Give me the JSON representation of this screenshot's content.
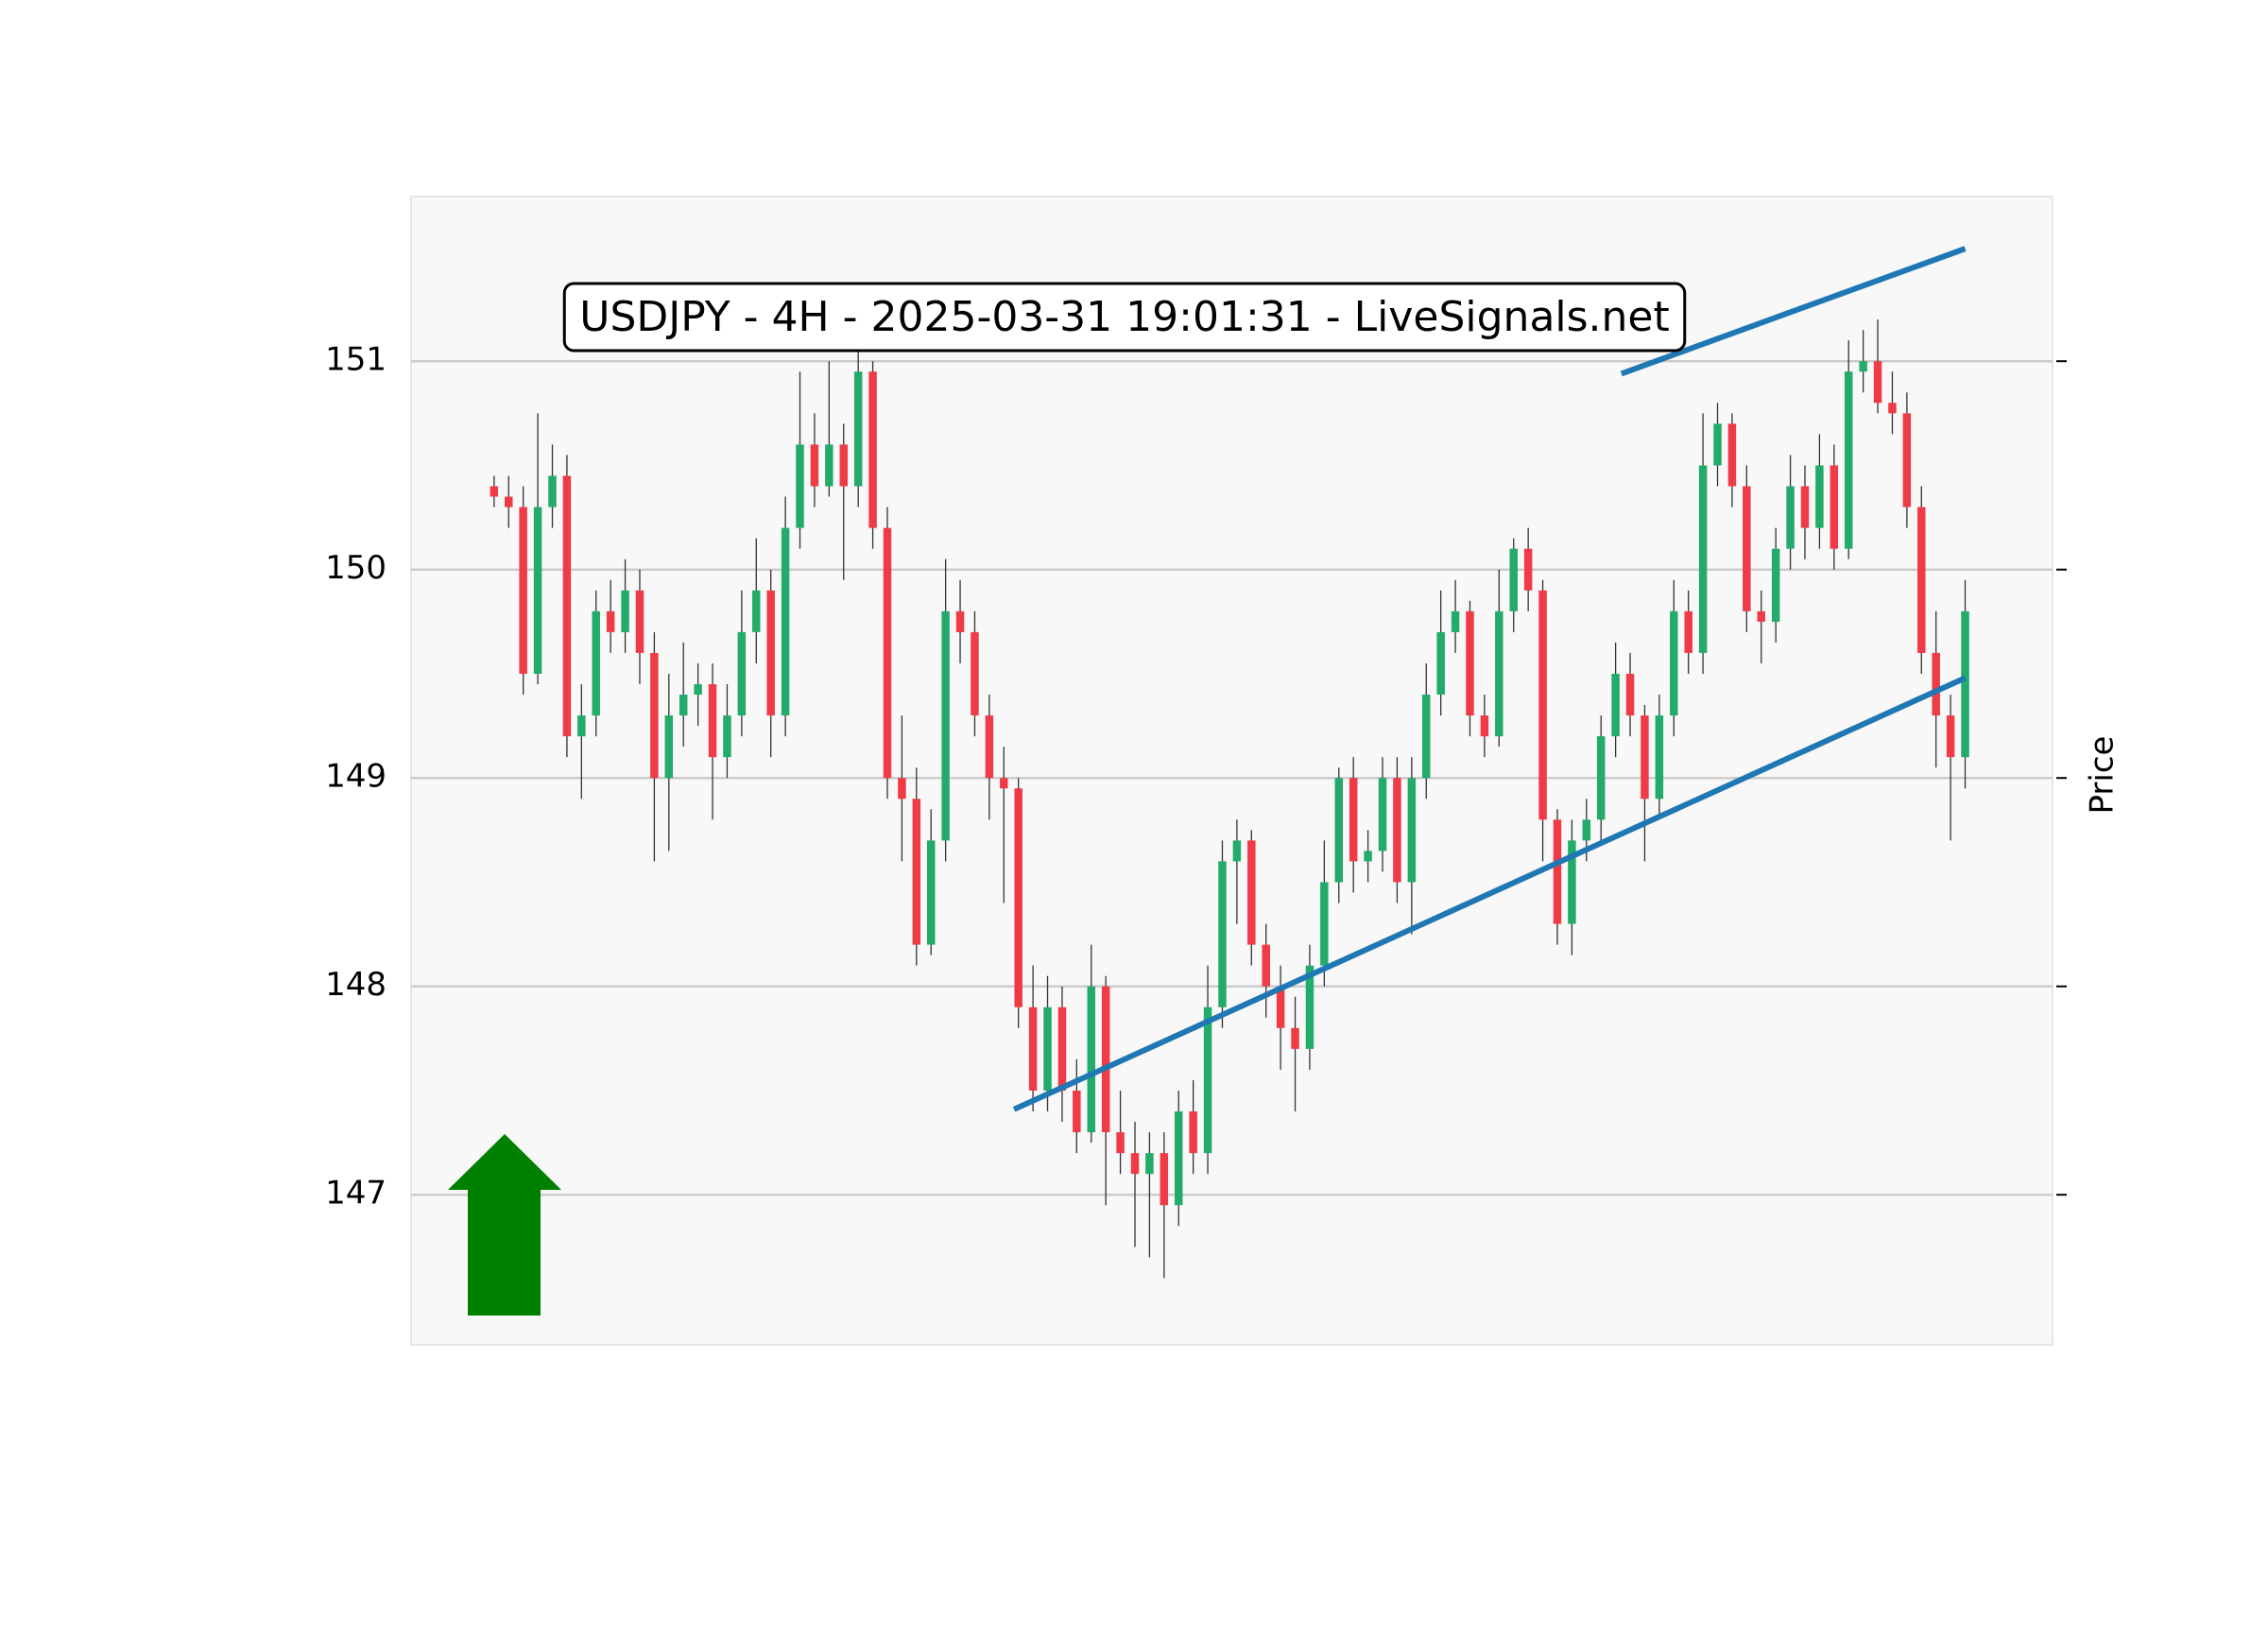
{
  "chart_data": {
    "type": "candlestick",
    "title": "USDJPY - 4H - 2025-03-31 19:01:31 - LiveSignals.net",
    "y_label": "Price",
    "up_color": "#22ab6a",
    "down_color": "#ef3b45",
    "ylim": [
      146.28,
      151.79
    ],
    "yticks": [
      147,
      148,
      149,
      150,
      151
    ],
    "grid": true,
    "xlim": [
      -5.7,
      107.0
    ],
    "open": [
      150.4,
      150.35,
      150.3,
      149.5,
      150.3,
      150.45,
      149.2,
      149.3,
      149.8,
      149.7,
      149.9,
      149.6,
      149.0,
      149.3,
      149.4,
      149.45,
      149.1,
      149.3,
      149.7,
      149.9,
      149.3,
      150.2,
      150.6,
      150.4,
      150.6,
      150.4,
      150.95,
      150.2,
      149.0,
      148.9,
      148.2,
      148.7,
      149.8,
      149.7,
      149.3,
      149.0,
      148.95,
      147.9,
      147.5,
      147.9,
      147.5,
      147.3,
      148.0,
      147.3,
      147.2,
      147.1,
      147.2,
      146.95,
      147.4,
      147.2,
      147.9,
      148.6,
      148.7,
      148.2,
      148.0,
      147.8,
      147.7,
      148.1,
      148.5,
      149.0,
      148.6,
      148.65,
      149.0,
      148.5,
      149.0,
      149.4,
      149.7,
      149.8,
      149.3,
      149.2,
      149.8,
      150.1,
      149.9,
      148.8,
      148.3,
      148.7,
      148.8,
      149.2,
      149.5,
      149.3,
      148.9,
      149.3,
      149.8,
      149.6,
      150.5,
      150.7,
      150.4,
      149.8,
      149.75,
      150.1,
      150.4,
      150.2,
      150.5,
      150.1,
      150.95,
      151.0,
      150.8,
      150.75,
      150.3,
      149.6,
      149.3,
      149.1
    ],
    "high": [
      150.45,
      150.45,
      150.4,
      150.75,
      150.6,
      150.55,
      149.45,
      149.9,
      149.95,
      150.05,
      150.0,
      149.7,
      149.5,
      149.65,
      149.55,
      149.55,
      149.45,
      149.9,
      150.15,
      150.0,
      150.35,
      150.95,
      150.75,
      151.0,
      150.7,
      151.05,
      151.0,
      150.3,
      149.3,
      149.05,
      148.85,
      150.05,
      149.95,
      149.8,
      149.4,
      149.15,
      149.0,
      148.1,
      148.05,
      148.0,
      147.65,
      148.2,
      148.05,
      147.5,
      147.35,
      147.3,
      147.3,
      147.5,
      147.55,
      148.1,
      148.7,
      148.8,
      148.75,
      148.3,
      148.1,
      147.95,
      148.2,
      148.7,
      149.05,
      149.1,
      148.75,
      149.1,
      149.1,
      149.1,
      149.55,
      149.9,
      149.95,
      149.85,
      149.4,
      150.0,
      150.15,
      150.2,
      149.95,
      148.85,
      148.8,
      148.9,
      149.3,
      149.65,
      149.6,
      149.35,
      149.4,
      149.95,
      149.9,
      150.75,
      150.8,
      150.75,
      150.5,
      149.9,
      150.2,
      150.55,
      150.5,
      150.65,
      150.6,
      151.1,
      151.15,
      151.2,
      150.95,
      150.85,
      150.4,
      149.8,
      149.4,
      149.95
    ],
    "low": [
      150.3,
      150.2,
      149.4,
      149.45,
      150.2,
      149.1,
      148.9,
      149.2,
      149.6,
      149.6,
      149.45,
      148.6,
      148.65,
      149.15,
      149.25,
      148.8,
      149.0,
      149.2,
      149.55,
      149.1,
      149.2,
      150.1,
      150.3,
      150.35,
      149.95,
      150.3,
      150.1,
      148.9,
      148.6,
      148.1,
      148.15,
      148.6,
      149.55,
      149.2,
      148.8,
      148.4,
      147.8,
      147.4,
      147.4,
      147.35,
      147.2,
      147.25,
      146.95,
      147.1,
      146.75,
      146.7,
      146.6,
      146.85,
      147.1,
      147.1,
      147.8,
      148.3,
      148.1,
      147.85,
      147.6,
      147.4,
      147.6,
      148.0,
      148.4,
      148.45,
      148.5,
      148.55,
      148.4,
      148.25,
      148.9,
      149.3,
      149.6,
      149.2,
      149.1,
      149.15,
      149.7,
      149.8,
      148.6,
      148.2,
      148.15,
      148.6,
      148.7,
      149.1,
      149.2,
      148.6,
      148.8,
      149.2,
      149.5,
      149.5,
      150.4,
      150.3,
      149.7,
      149.55,
      149.65,
      150.0,
      150.05,
      150.1,
      150.0,
      150.05,
      150.85,
      150.75,
      150.65,
      150.2,
      149.5,
      149.05,
      148.7,
      148.95
    ],
    "close": [
      150.35,
      150.3,
      149.5,
      150.3,
      150.45,
      149.2,
      149.3,
      149.8,
      149.7,
      149.9,
      149.6,
      149.0,
      149.3,
      149.4,
      149.45,
      149.1,
      149.3,
      149.7,
      149.9,
      149.3,
      150.2,
      150.6,
      150.4,
      150.6,
      150.4,
      150.95,
      150.2,
      149.0,
      148.9,
      148.2,
      148.7,
      149.8,
      149.7,
      149.3,
      149.0,
      148.95,
      147.9,
      147.5,
      147.9,
      147.5,
      147.3,
      148.0,
      147.3,
      147.2,
      147.1,
      147.2,
      146.95,
      147.4,
      147.2,
      147.9,
      148.6,
      148.7,
      148.2,
      148.0,
      147.8,
      147.7,
      148.1,
      148.5,
      149.0,
      148.6,
      148.65,
      149.0,
      148.5,
      149.0,
      149.4,
      149.7,
      149.8,
      149.3,
      149.2,
      149.8,
      150.1,
      149.9,
      148.8,
      148.3,
      148.7,
      148.8,
      149.2,
      149.5,
      149.3,
      148.9,
      149.3,
      149.8,
      149.6,
      150.5,
      150.7,
      150.4,
      149.8,
      149.75,
      150.1,
      150.4,
      150.2,
      150.5,
      150.1,
      150.95,
      151.0,
      150.8,
      150.75,
      150.3,
      149.6,
      149.3,
      149.1,
      149.8
    ],
    "trendlines": [
      {
        "color": "#1f77b4",
        "x": [
          35.7,
          101
        ],
        "y": [
          147.41,
          149.48
        ]
      },
      {
        "color": "#1f77b4",
        "x": [
          77.4,
          101
        ],
        "y": [
          150.94,
          151.54
        ]
      }
    ]
  }
}
